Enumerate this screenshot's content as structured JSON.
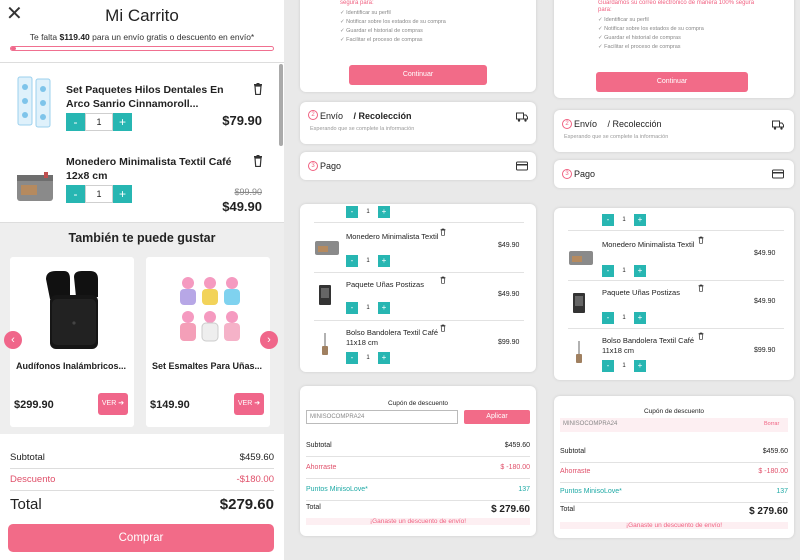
{
  "cart": {
    "title": "Mi Carrito",
    "shipping_prefix": "Te falta",
    "shipping_amount": "$119.40",
    "shipping_suffix": "para un envío gratis o descuento en envío*",
    "shipping_progress": 0.02,
    "items": [
      {
        "name": "Set Paquetes Hilos Dentales En Arco Sanrio Cinnamoroll...",
        "qty": "1",
        "price": "$79.90",
        "old_price": ""
      },
      {
        "name": "Monedero Minimalista Textil Café 12x8 cm",
        "qty": "1",
        "price": "$49.90",
        "old_price": "$99.90"
      }
    ],
    "qty_minus": "-",
    "qty_plus": "+",
    "recommendations_title": "También te puede gustar",
    "recommendations": [
      {
        "name": "Audífonos Inalámbricos...",
        "price": "$299.90",
        "button": "VER"
      },
      {
        "name": "Set Esmaltes Para Uñas...",
        "price": "$149.90",
        "button": "VER"
      }
    ],
    "subtotal_label": "Subtotal",
    "subtotal_value": "$459.60",
    "discount_label": "Descuento",
    "discount_value": "-$180.00",
    "total_label": "Total",
    "total_value": "$279.60",
    "buy_label": "Comprar"
  },
  "checkout": {
    "signup_heading": "segura para:",
    "signup_heading_right": "Guardamos su correo electrónico de manera 100% segura para:",
    "benefits": [
      "Identificar su perfil",
      "Notificar sobre los estados de su compra",
      "Guardar el historial de compras",
      "Facilitar el proceso de compras"
    ],
    "continue_label": "Continuar",
    "step2_num": "2",
    "step2_title": "Envío",
    "step2_title2": "/ Recolección",
    "step2_sub": "Esperando que se complete la información",
    "step3_num": "3",
    "step3_title": "Pago",
    "items": [
      {
        "name": "Monedero Minimalista Textil",
        "qty": "1",
        "price": "$49.90"
      },
      {
        "name": "Paquete Uñas Postizas",
        "qty": "1",
        "price": "$49.90"
      },
      {
        "name": "Bolso Bandolera Textil Café 11x18 cm",
        "qty": "1",
        "price": "$99.90"
      }
    ],
    "partial_qty": "1",
    "coupon_title": "Cupón de descuento",
    "coupon_value": "MINISOCOMPRA24",
    "coupon_apply": "Aplicar",
    "coupon_remove": "Borrar",
    "subtotal_label": "Subtotal",
    "subtotal_value": "$459.60",
    "savings_label": "Ahorraste",
    "savings_value": "$ -180.00",
    "points_label": "Puntos MinisoLove*",
    "points_value": "137",
    "total_label": "Total",
    "total_value": "$ 279.60",
    "gain_msg": "¡Ganaste un descuento de envío!"
  },
  "colors": {
    "accent": "#f26b88",
    "teal": "#27b6b2"
  },
  "icons": {
    "close": "close-icon",
    "trash": "trash-icon",
    "truck": "truck-icon",
    "card": "credit-card-icon"
  }
}
